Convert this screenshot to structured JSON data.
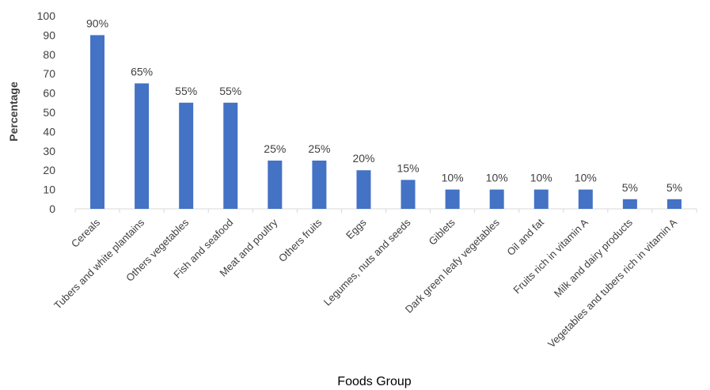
{
  "chart_data": {
    "type": "bar",
    "title": "",
    "xlabel": "Foods Group",
    "ylabel": "Percentage",
    "ylim": [
      0,
      100
    ],
    "yticks": [
      0,
      10,
      20,
      30,
      40,
      50,
      60,
      70,
      80,
      90,
      100
    ],
    "grid": false,
    "legend": "none",
    "bar_color": "#4472C4",
    "categories": [
      "Cereals",
      "Tubers and white plantains",
      "Others vegetables",
      "Fish and seafood",
      "Meat and poultry",
      "Others fruits",
      "Eggs",
      "Legumes, nuts and seeds",
      "Giblets",
      "Dark green leafy vegetables",
      "Oil and fat",
      "Fruits rich in vitamin A",
      "Milk and dairy products",
      "Vegetables and tubers rich in vitamin A"
    ],
    "values": [
      90,
      65,
      55,
      55,
      25,
      25,
      20,
      15,
      10,
      10,
      10,
      10,
      5,
      5
    ],
    "data_labels": [
      "90%",
      "65%",
      "55%",
      "55%",
      "25%",
      "25%",
      "20%",
      "15%",
      "10%",
      "10%",
      "10%",
      "10%",
      "5%",
      "5%"
    ]
  }
}
